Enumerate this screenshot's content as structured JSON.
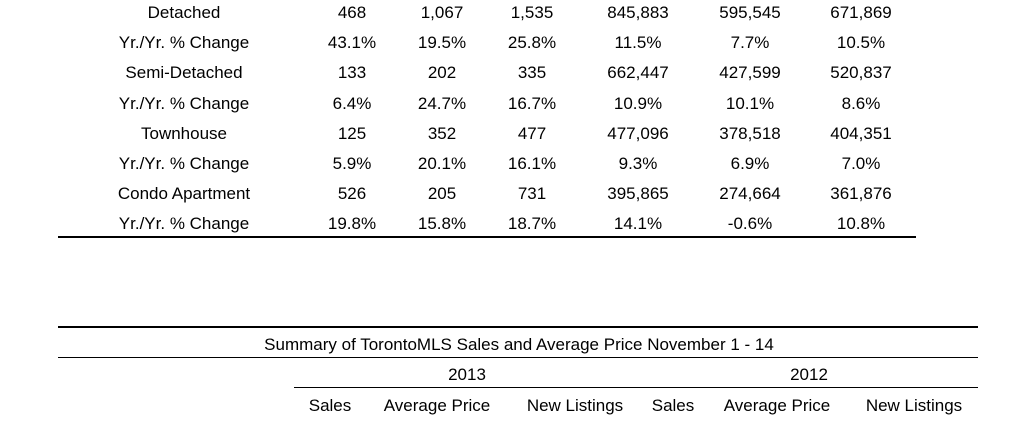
{
  "upper_table": {
    "rows": [
      {
        "label": "Detached",
        "values": [
          "468",
          "1,067",
          "1,535",
          "845,883",
          "595,545",
          "671,869"
        ]
      },
      {
        "label": "Yr./Yr. % Change",
        "values": [
          "43.1%",
          "19.5%",
          "25.8%",
          "11.5%",
          "7.7%",
          "10.5%"
        ]
      },
      {
        "label": "Semi-Detached",
        "values": [
          "133",
          "202",
          "335",
          "662,447",
          "427,599",
          "520,837"
        ]
      },
      {
        "label": "Yr./Yr. % Change",
        "values": [
          "6.4%",
          "24.7%",
          "16.7%",
          "10.9%",
          "10.1%",
          "8.6%"
        ]
      },
      {
        "label": "Townhouse",
        "values": [
          "125",
          "352",
          "477",
          "477,096",
          "378,518",
          "404,351"
        ]
      },
      {
        "label": "Yr./Yr. % Change",
        "values": [
          "5.9%",
          "20.1%",
          "16.1%",
          "9.3%",
          "6.9%",
          "7.0%"
        ]
      },
      {
        "label": "Condo Apartment",
        "values": [
          "526",
          "205",
          "731",
          "395,865",
          "274,664",
          "361,876"
        ]
      },
      {
        "label": "Yr./Yr. % Change",
        "values": [
          "19.8%",
          "15.8%",
          "18.7%",
          "14.1%",
          "-0.6%",
          "10.8%"
        ]
      }
    ]
  },
  "summary_table": {
    "title": "Summary of TorontoMLS Sales and Average Price November 1 - 14",
    "years": [
      "2013",
      "2012"
    ],
    "columns": [
      "Sales",
      "Average Price",
      "New Listings",
      "Sales",
      "Average Price",
      "New Listings"
    ]
  }
}
